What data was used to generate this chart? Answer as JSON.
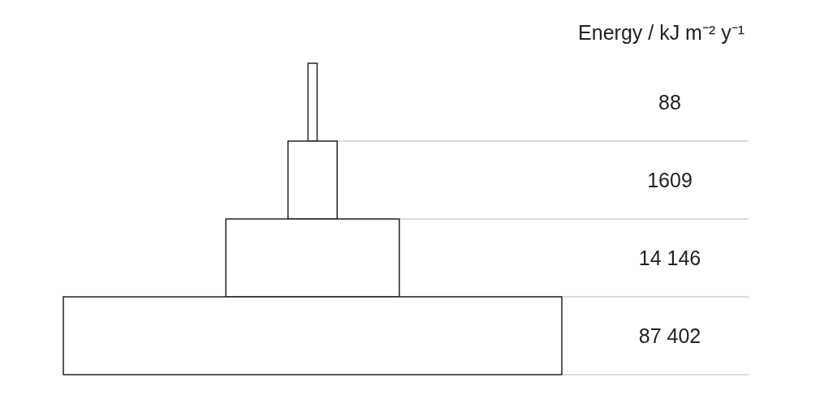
{
  "chart_data": {
    "type": "other",
    "title": "Energy / kJ m⁻² y⁻¹",
    "categories": [
      null,
      null,
      null,
      null
    ],
    "values": [
      88,
      1609,
      14146,
      87402
    ],
    "value_labels": [
      "88",
      "1609",
      "14 146",
      "87 402"
    ],
    "color": "#ffffff"
  }
}
